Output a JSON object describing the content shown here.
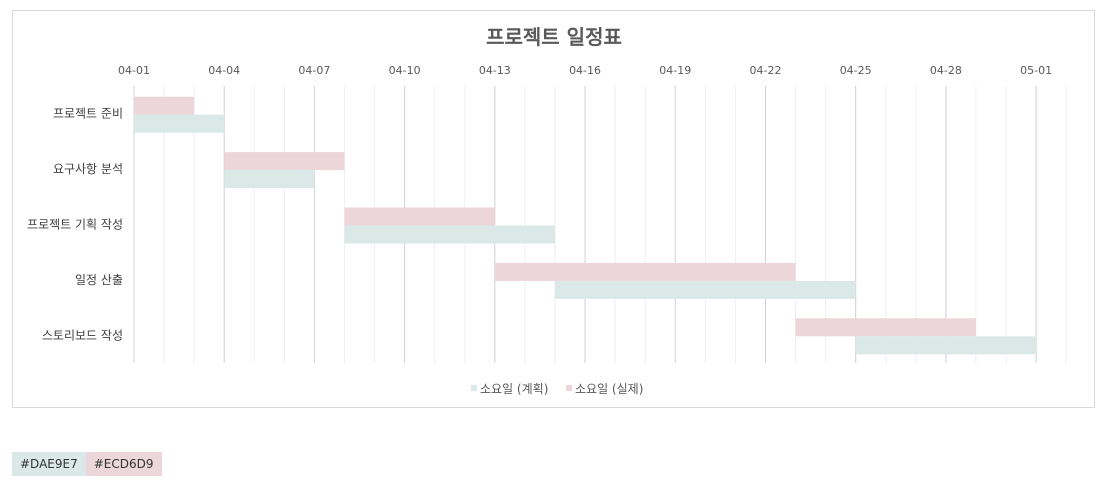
{
  "chart_data": {
    "type": "bar",
    "orientation": "horizontal-gantt",
    "title": "프로젝트 일정표",
    "x_axis": {
      "start": "2024-04-01",
      "end": "2024-05-02",
      "ticks": [
        "04-01",
        "04-04",
        "04-07",
        "04-10",
        "04-13",
        "04-16",
        "04-19",
        "04-22",
        "04-25",
        "04-28",
        "05-01"
      ],
      "grid": true
    },
    "categories": [
      "프로젝트 준비",
      "요구사항 분석",
      "프로젝트 기획 작성",
      "일정 산출",
      "스토리보드 작성"
    ],
    "series": [
      {
        "name": "소요일 (실제)",
        "color": "#ECD6D9",
        "tasks": [
          {
            "start": "04-01",
            "end": "04-03"
          },
          {
            "start": "04-04",
            "end": "04-08"
          },
          {
            "start": "04-08",
            "end": "04-13"
          },
          {
            "start": "04-13",
            "end": "04-23"
          },
          {
            "start": "04-23",
            "end": "04-29"
          }
        ]
      },
      {
        "name": "소요일 (계획)",
        "color": "#DAE9E7",
        "tasks": [
          {
            "start": "04-01",
            "end": "04-04"
          },
          {
            "start": "04-04",
            "end": "04-07"
          },
          {
            "start": "04-08",
            "end": "04-15"
          },
          {
            "start": "04-15",
            "end": "04-25"
          },
          {
            "start": "04-25",
            "end": "05-01"
          }
        ]
      }
    ],
    "legend": {
      "position": "bottom",
      "items": [
        {
          "label": "소요일 (계획)",
          "color": "#DAE9E7"
        },
        {
          "label": "소요일 (실제)",
          "color": "#ECD6D9"
        }
      ]
    }
  },
  "swatches": [
    {
      "label": "#DAE9E7",
      "color": "#DAE9E7"
    },
    {
      "label": "#ECD6D9",
      "color": "#ECD6D9"
    }
  ]
}
